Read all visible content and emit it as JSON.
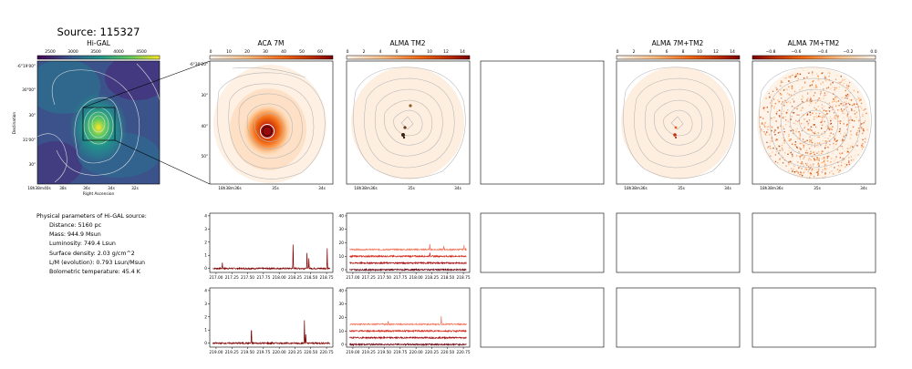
{
  "source_title": "Source: 115327",
  "higal": {
    "title": "Hi-GAL",
    "colorbar_ticks": [
      "2500",
      "3000",
      "3500",
      "4000",
      "4500"
    ],
    "y_ticks": [
      "-6°19'00\"",
      "30\"00\"",
      "30\"",
      "31'00\"",
      "30\""
    ],
    "x_ticks": [
      "18h38m40s",
      "38s",
      "36s",
      "34s",
      "32s"
    ],
    "xlabel": "Right Ascension",
    "ylabel": "Declination"
  },
  "aca": {
    "title": "ACA 7M",
    "colorbar_ticks": [
      "0",
      "10",
      "20",
      "30",
      "40",
      "50",
      "60"
    ],
    "y_ticks": [
      "-6°30'20\"",
      "30\"",
      "40\"",
      "50\""
    ],
    "x_ticks": [
      "18h38m36s",
      "35s",
      "34s"
    ]
  },
  "tm2": {
    "title": "ALMA TM2",
    "colorbar_ticks": [
      "0",
      "2",
      "4",
      "6",
      "8",
      "10",
      "12",
      "14"
    ],
    "x_ticks": [
      "18h38m36s",
      "35s",
      "34s"
    ]
  },
  "combo": {
    "title": "ALMA 7M+TM2",
    "colorbar_ticks": [
      "0",
      "2",
      "4",
      "6",
      "8",
      "10",
      "12",
      "14"
    ],
    "x_ticks": [
      "18h38m36s",
      "35s",
      "34s"
    ]
  },
  "combo2": {
    "title": "ALMA 7M+TM2",
    "colorbar_ticks": [
      "−0.8",
      "−0.6",
      "−0.4",
      "−0.2",
      "0.0"
    ],
    "x_ticks": [
      "18h38m36s",
      "35s",
      "34s"
    ]
  },
  "params": {
    "heading": "Physical parameters of Hi-GAL source:",
    "lines": [
      "Distance: 5160 pc",
      "Mass: 944.9 Msun",
      "Luminosity: 749.4 Lsun",
      "Surface density: 2.03 g/cm^2",
      "L/M (evolution): 0.793 Lsun/Msun",
      "Bolometric temperature: 45.4 K"
    ]
  },
  "chart_data": [
    {
      "type": "line",
      "name_hint": "ACA 7M spectrum (lower sideband)",
      "x_ticks": [
        "217.00",
        "217.25",
        "217.50",
        "217.75",
        "218.00",
        "218.25",
        "218.50",
        "218.75"
      ],
      "xlim": [
        216.9,
        218.85
      ],
      "ylim": [
        -0.3,
        4.2
      ],
      "y_ticks": [
        0,
        1,
        2,
        3,
        4
      ],
      "series": [
        {
          "color": "#7f0000",
          "baseline": 0,
          "peaks": [
            [
              217.1,
              0.45
            ],
            [
              218.22,
              2.05
            ],
            [
              218.44,
              1.25
            ],
            [
              218.47,
              0.8
            ],
            [
              218.76,
              1.55
            ]
          ]
        }
      ]
    },
    {
      "type": "line",
      "name_hint": "ALMA TM2 spectrum (lower sideband)",
      "x_ticks": [
        "217.00",
        "217.25",
        "217.50",
        "217.75",
        "218.00",
        "218.25",
        "218.50",
        "218.75"
      ],
      "xlim": [
        216.9,
        218.85
      ],
      "ylim": [
        -2,
        42
      ],
      "y_ticks": [
        0,
        10,
        20,
        30,
        40
      ],
      "series": [
        {
          "color": "#f4765c",
          "baseline": 15,
          "peaks": [
            [
              218.22,
              5
            ],
            [
              218.44,
              3
            ],
            [
              218.76,
              4
            ]
          ]
        },
        {
          "color": "#d32f20",
          "baseline": 10,
          "peaks": [
            [
              218.22,
              3
            ]
          ]
        },
        {
          "color": "#a50f15",
          "baseline": 5,
          "peaks": []
        },
        {
          "color": "#67000d",
          "baseline": 0,
          "peaks": []
        }
      ]
    },
    {
      "type": "line",
      "name_hint": "ACA 7M spectrum (upper sideband)",
      "x_ticks": [
        "219.00",
        "219.25",
        "219.50",
        "219.75",
        "220.00",
        "220.25",
        "220.50",
        "220.75"
      ],
      "xlim": [
        218.9,
        220.85
      ],
      "ylim": [
        -0.3,
        4.2
      ],
      "y_ticks": [
        0,
        1,
        2,
        3,
        4
      ],
      "series": [
        {
          "color": "#7f0000",
          "baseline": 0,
          "peaks": [
            [
              219.56,
              1.25
            ],
            [
              220.4,
              1.8
            ],
            [
              220.42,
              0.7
            ]
          ]
        }
      ]
    },
    {
      "type": "line",
      "name_hint": "ALMA TM2 spectrum (upper sideband)",
      "x_ticks": [
        "219.00",
        "219.25",
        "219.50",
        "219.75",
        "220.00",
        "220.25",
        "220.50",
        "220.75"
      ],
      "xlim": [
        218.9,
        220.85
      ],
      "ylim": [
        -2,
        42
      ],
      "y_ticks": [
        0,
        10,
        20,
        30,
        40
      ],
      "series": [
        {
          "color": "#f4765c",
          "baseline": 15,
          "peaks": [
            [
              219.56,
              3
            ],
            [
              220.4,
              6
            ]
          ]
        },
        {
          "color": "#d32f20",
          "baseline": 10,
          "peaks": []
        },
        {
          "color": "#a50f15",
          "baseline": 5,
          "peaks": []
        },
        {
          "color": "#67000d",
          "baseline": 0,
          "peaks": []
        }
      ]
    }
  ]
}
